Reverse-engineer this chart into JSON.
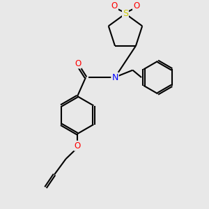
{
  "background_color": "#e8e8e8",
  "bond_color": "#000000",
  "bond_width": 1.5,
  "atom_colors": {
    "S": "#cccc00",
    "N": "#0000ff",
    "O": "#ff0000",
    "C": "#000000"
  },
  "figsize": [
    3.0,
    3.0
  ],
  "dpi": 100,
  "xlim": [
    0,
    10
  ],
  "ylim": [
    0,
    10
  ]
}
